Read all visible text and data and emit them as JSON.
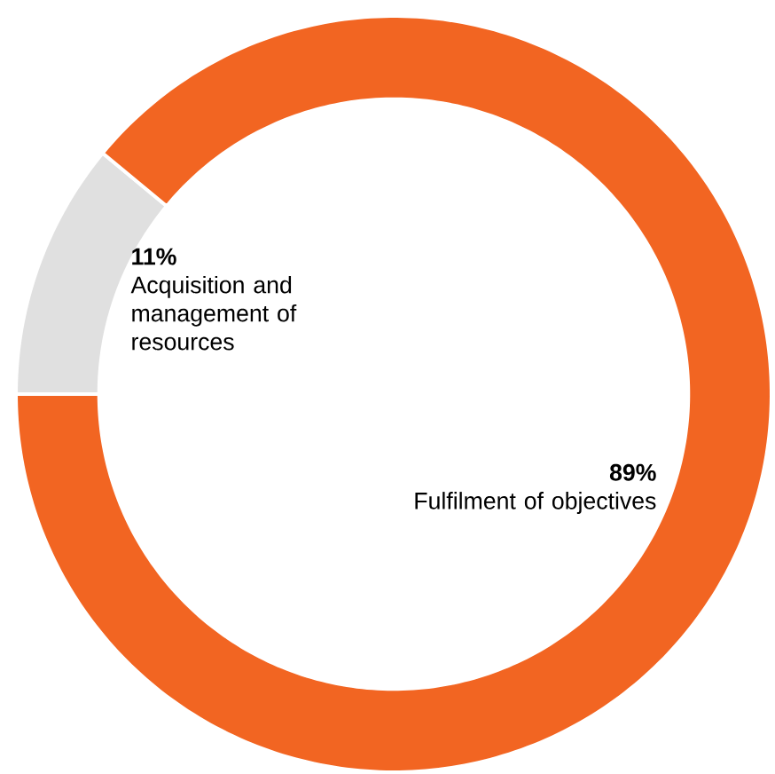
{
  "chart_data": {
    "type": "donut",
    "categories": [
      "Acquisition and management of resources",
      "Fulfilment of objectives"
    ],
    "values": [
      11,
      89
    ],
    "value_labels": [
      "11%",
      "89%"
    ],
    "colors": [
      "#e0e0e0",
      "#f26522"
    ]
  }
}
